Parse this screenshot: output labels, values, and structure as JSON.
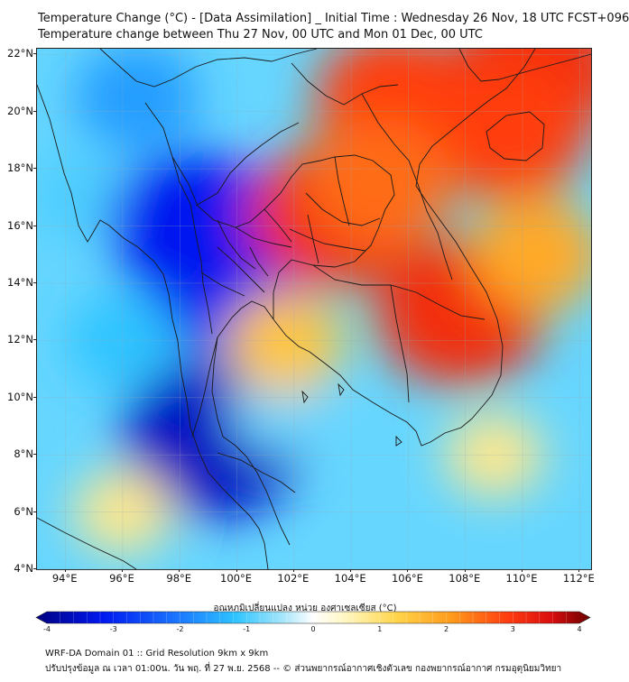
{
  "titles": {
    "line1": "Temperature Change (°C) - [Data Assimilation] _ Initial Time : Wednesday 26 Nov, 18 UTC FCST+096",
    "line2": "Temperature change between Thu 27 Nov, 00 UTC and Mon 01 Dec, 00 UTC"
  },
  "map": {
    "lat_labels": [
      "22°N",
      "20°N",
      "18°N",
      "16°N",
      "14°N",
      "12°N",
      "10°N",
      "8°N",
      "6°N",
      "4°N"
    ],
    "lon_labels": [
      "94°E",
      "96°E",
      "98°E",
      "100°E",
      "102°E",
      "104°E",
      "106°E",
      "108°E",
      "110°E",
      "112°E"
    ],
    "extent": {
      "lon_min": 93,
      "lon_max": 112.4,
      "lat_min": 4,
      "lat_max": 22.2
    },
    "field_regions": [
      {
        "name": "myanmar-north-cooling",
        "lon": 96.5,
        "lat": 20.5,
        "value": -1.6
      },
      {
        "name": "west-coast-cooling",
        "lon": 94.5,
        "lat": 17,
        "value": -1.0
      },
      {
        "name": "thai-north-cooling",
        "lon": 98.5,
        "lat": 16,
        "value": -3.0
      },
      {
        "name": "thai-central-cooling",
        "lon": 99.6,
        "lat": 14.2,
        "value": -3.0
      },
      {
        "name": "peninsula-cooling",
        "lon": 99.2,
        "lat": 8.6,
        "value": -3.4
      },
      {
        "name": "andaman-cooling",
        "lon": 96,
        "lat": 12,
        "value": -1.2
      },
      {
        "name": "gulf-cooling",
        "lon": 101.5,
        "lat": 9.5,
        "value": -0.8
      },
      {
        "name": "northeast-thai-warming",
        "lon": 103.4,
        "lat": 16.4,
        "value": 3.0
      },
      {
        "name": "vietnam-north-warming",
        "lon": 105.6,
        "lat": 20.4,
        "value": 2.8
      },
      {
        "name": "south-china-warming",
        "lon": 110.5,
        "lat": 21.5,
        "value": 3.0
      },
      {
        "name": "hainan-warming",
        "lon": 109.5,
        "lat": 19.4,
        "value": 2.8
      },
      {
        "name": "cambodia-east-warming",
        "lon": 107.8,
        "lat": 13,
        "value": 3.0
      },
      {
        "name": "laos-warming",
        "lon": 105,
        "lat": 17.5,
        "value": 2.4
      },
      {
        "name": "eastern-sea-warming",
        "lon": 110.5,
        "lat": 15,
        "value": 1.8
      },
      {
        "name": "south-sea-warming",
        "lon": 109,
        "lat": 8,
        "value": 0.8
      },
      {
        "name": "southwest-warming",
        "lon": 96,
        "lat": 6,
        "value": 0.8
      },
      {
        "name": "thai-east-warming",
        "lon": 101.7,
        "lat": 11.9,
        "value": 1.4
      }
    ]
  },
  "colorbar": {
    "title": "อุณหภูมิเปลี่ยนแปลง หน่วย องศาเซลเซียส (°C)",
    "min": -4,
    "max": 4,
    "tick_labels": [
      "-4",
      "-3",
      "-2",
      "-1",
      "0",
      "1",
      "2",
      "3",
      "4"
    ]
  },
  "footer": {
    "line1": "WRF-DA Domain 01 :: Grid Resolution 9km x 9km",
    "line2": "ปรับปรุงข้อมูล ณ เวลา 01:00น. วัน พฤ. ที่ 27 พ.ย. 2568 -- © ส่วนพยากรณ์อากาศเชิงตัวเลข กองพยากรณ์อากาศ กรมอุตุนิยมวิทยา"
  },
  "colors": {
    "frame": "#222222",
    "coast": "#1a1a1a"
  }
}
